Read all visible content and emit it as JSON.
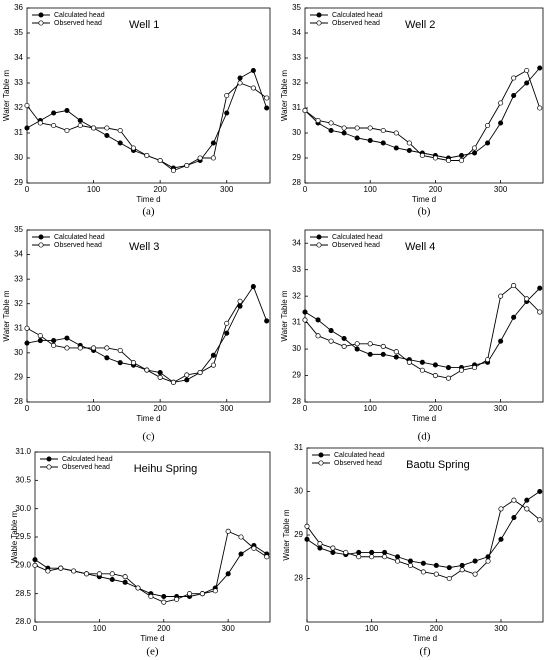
{
  "chart_data": [
    {
      "type": "line",
      "title": "Well 1",
      "panel_label": "(a)",
      "xlabel": "Time d",
      "ylabel": "Water Table m",
      "x": [
        0,
        20,
        40,
        60,
        80,
        100,
        120,
        140,
        160,
        180,
        200,
        220,
        240,
        260,
        280,
        300,
        320,
        340,
        360
      ],
      "series": [
        {
          "name": "Calculated head",
          "color": "#000000",
          "marker_fill": "#000000",
          "values": [
            31.2,
            31.5,
            31.8,
            31.9,
            31.5,
            31.2,
            30.9,
            30.6,
            30.3,
            30.1,
            29.9,
            29.6,
            29.7,
            29.9,
            30.6,
            31.8,
            33.2,
            33.5,
            32.0
          ]
        },
        {
          "name": "Observed head",
          "color": "#000000",
          "marker_fill": "#ffffff",
          "values": [
            32.1,
            31.4,
            31.3,
            31.1,
            31.3,
            31.2,
            31.2,
            31.1,
            30.4,
            30.1,
            29.9,
            29.5,
            29.7,
            30.0,
            30.0,
            32.5,
            33.0,
            32.8,
            32.4
          ]
        }
      ],
      "xlim": [
        0,
        365
      ],
      "xticks": [
        0,
        100,
        200,
        300
      ],
      "ylim": [
        29,
        36
      ],
      "yticks": [
        29,
        30,
        31,
        32,
        33,
        34,
        35,
        36
      ],
      "legend": "upper left"
    },
    {
      "type": "line",
      "title": "Well 2",
      "panel_label": "(b)",
      "xlabel": "Time d",
      "ylabel": "Water Table m",
      "x": [
        0,
        20,
        40,
        60,
        80,
        100,
        120,
        140,
        160,
        180,
        200,
        220,
        240,
        260,
        280,
        300,
        320,
        340,
        360
      ],
      "series": [
        {
          "name": "Calculated head",
          "color": "#000000",
          "marker_fill": "#000000",
          "values": [
            30.9,
            30.4,
            30.1,
            30.0,
            29.8,
            29.7,
            29.6,
            29.4,
            29.3,
            29.2,
            29.1,
            29.0,
            29.1,
            29.2,
            29.6,
            30.4,
            31.5,
            32.0,
            32.6
          ]
        },
        {
          "name": "Observed head",
          "color": "#000000",
          "marker_fill": "#ffffff",
          "values": [
            30.9,
            30.5,
            30.4,
            30.2,
            30.2,
            30.2,
            30.1,
            30.0,
            29.6,
            29.1,
            29.0,
            28.9,
            28.9,
            29.4,
            30.3,
            31.2,
            32.2,
            32.5,
            31.0
          ]
        }
      ],
      "xlim": [
        0,
        365
      ],
      "xticks": [
        0,
        100,
        200,
        300
      ],
      "ylim": [
        28,
        35
      ],
      "yticks": [
        28,
        29,
        30,
        31,
        32,
        33,
        34,
        35
      ],
      "legend": "upper left"
    },
    {
      "type": "line",
      "title": "Well 3",
      "panel_label": "(c)",
      "xlabel": "Time d",
      "ylabel": "Water Table m",
      "x": [
        0,
        20,
        40,
        60,
        80,
        100,
        120,
        140,
        160,
        180,
        200,
        220,
        240,
        260,
        280,
        300,
        320,
        340,
        360
      ],
      "series": [
        {
          "name": "Calculated head",
          "color": "#000000",
          "marker_fill": "#000000",
          "values": [
            30.4,
            30.5,
            30.5,
            30.6,
            30.3,
            30.1,
            29.8,
            29.6,
            29.5,
            29.3,
            29.2,
            28.8,
            28.9,
            29.2,
            29.9,
            30.8,
            31.9,
            32.7,
            31.3
          ]
        },
        {
          "name": "Observed head",
          "color": "#000000",
          "marker_fill": "#ffffff",
          "values": [
            31.0,
            30.7,
            30.3,
            30.2,
            30.2,
            30.2,
            30.2,
            30.1,
            29.6,
            29.3,
            29.0,
            28.8,
            29.1,
            29.2,
            29.5,
            31.2,
            32.1,
            null,
            null
          ]
        }
      ],
      "xlim": [
        0,
        365
      ],
      "xticks": [
        0,
        100,
        200,
        300
      ],
      "ylim": [
        28,
        35
      ],
      "yticks": [
        28,
        29,
        30,
        31,
        32,
        33,
        34,
        35
      ],
      "legend": "upper left"
    },
    {
      "type": "line",
      "title": "Well 4",
      "panel_label": "(d)",
      "xlabel": "Time d",
      "ylabel": "Water Table m",
      "x": [
        0,
        20,
        40,
        60,
        80,
        100,
        120,
        140,
        160,
        180,
        200,
        220,
        240,
        260,
        280,
        300,
        320,
        340,
        360
      ],
      "series": [
        {
          "name": "Calculated head",
          "color": "#000000",
          "marker_fill": "#000000",
          "values": [
            31.4,
            31.1,
            30.7,
            30.4,
            30.0,
            29.8,
            29.8,
            29.7,
            29.6,
            29.5,
            29.4,
            29.3,
            29.3,
            29.4,
            29.5,
            30.3,
            31.2,
            31.8,
            32.3
          ]
        },
        {
          "name": "Observed head",
          "color": "#000000",
          "marker_fill": "#ffffff",
          "values": [
            31.1,
            30.5,
            30.3,
            30.1,
            30.2,
            30.2,
            30.1,
            29.9,
            29.5,
            29.2,
            29.0,
            28.9,
            29.2,
            29.3,
            29.6,
            32.0,
            32.4,
            31.9,
            31.4
          ]
        }
      ],
      "xlim": [
        0,
        365
      ],
      "xticks": [
        0,
        100,
        200,
        300
      ],
      "ylim": [
        28,
        34.5
      ],
      "yticks": [
        28,
        29,
        30,
        31,
        32,
        33,
        34
      ],
      "legend": "upper left"
    },
    {
      "type": "line",
      "title": "Heihu Spring",
      "panel_label": "(e)",
      "xlabel": "Time d",
      "ylabel": "Wable Table m",
      "x": [
        0,
        20,
        40,
        60,
        80,
        100,
        120,
        140,
        160,
        180,
        200,
        220,
        240,
        260,
        280,
        300,
        320,
        340,
        360
      ],
      "series": [
        {
          "name": "Calculated head",
          "color": "#000000",
          "marker_fill": "#000000",
          "values": [
            29.1,
            28.95,
            28.95,
            28.9,
            28.85,
            28.8,
            28.75,
            28.7,
            28.6,
            28.5,
            28.45,
            28.45,
            28.45,
            28.5,
            28.6,
            28.85,
            29.2,
            29.35,
            29.2
          ]
        },
        {
          "name": "Observed head",
          "color": "#000000",
          "marker_fill": "#ffffff",
          "values": [
            29.0,
            28.9,
            28.95,
            28.9,
            28.85,
            28.85,
            28.85,
            28.8,
            28.6,
            28.45,
            28.35,
            28.4,
            28.5,
            28.5,
            28.55,
            29.6,
            29.5,
            29.3,
            29.15
          ]
        }
      ],
      "xlim": [
        0,
        365
      ],
      "xticks": [
        0,
        100,
        200,
        300
      ],
      "ylim": [
        28,
        31
      ],
      "yticks": [
        {
          "value": 28,
          "label": "28.0"
        },
        {
          "value": 28.5,
          "label": "28.5"
        },
        {
          "value": 29,
          "label": "29.0"
        },
        {
          "value": 29.5,
          "label": "29.5"
        },
        {
          "value": 30,
          "label": "30.0"
        },
        {
          "value": 30.5,
          "label": "30.5"
        },
        {
          "value": 31,
          "label": "31.0"
        }
      ],
      "legend": "upper left"
    },
    {
      "type": "line",
      "title": "Baotu Spring",
      "panel_label": "(f)",
      "xlabel": "Time d",
      "ylabel": "Water Table m",
      "x": [
        0,
        20,
        40,
        60,
        80,
        100,
        120,
        140,
        160,
        180,
        200,
        220,
        240,
        260,
        280,
        300,
        320,
        340,
        360
      ],
      "series": [
        {
          "name": "Calculated head",
          "color": "#000000",
          "marker_fill": "#000000",
          "values": [
            28.9,
            28.7,
            28.6,
            28.55,
            28.6,
            28.6,
            28.6,
            28.5,
            28.4,
            28.35,
            28.3,
            28.25,
            28.3,
            28.4,
            28.5,
            28.9,
            29.4,
            29.8,
            30.0
          ]
        },
        {
          "name": "Observed head",
          "color": "#000000",
          "marker_fill": "#ffffff",
          "values": [
            29.2,
            28.8,
            28.7,
            28.6,
            28.5,
            28.5,
            28.5,
            28.4,
            28.3,
            28.15,
            28.1,
            28.0,
            28.2,
            28.1,
            28.4,
            29.6,
            29.8,
            29.6,
            29.35
          ]
        }
      ],
      "xlim": [
        0,
        365
      ],
      "xticks": [
        0,
        100,
        200,
        300
      ],
      "ylim": [
        27,
        31
      ],
      "yticks": [
        28,
        29,
        30,
        31
      ],
      "legend": "upper left"
    }
  ]
}
